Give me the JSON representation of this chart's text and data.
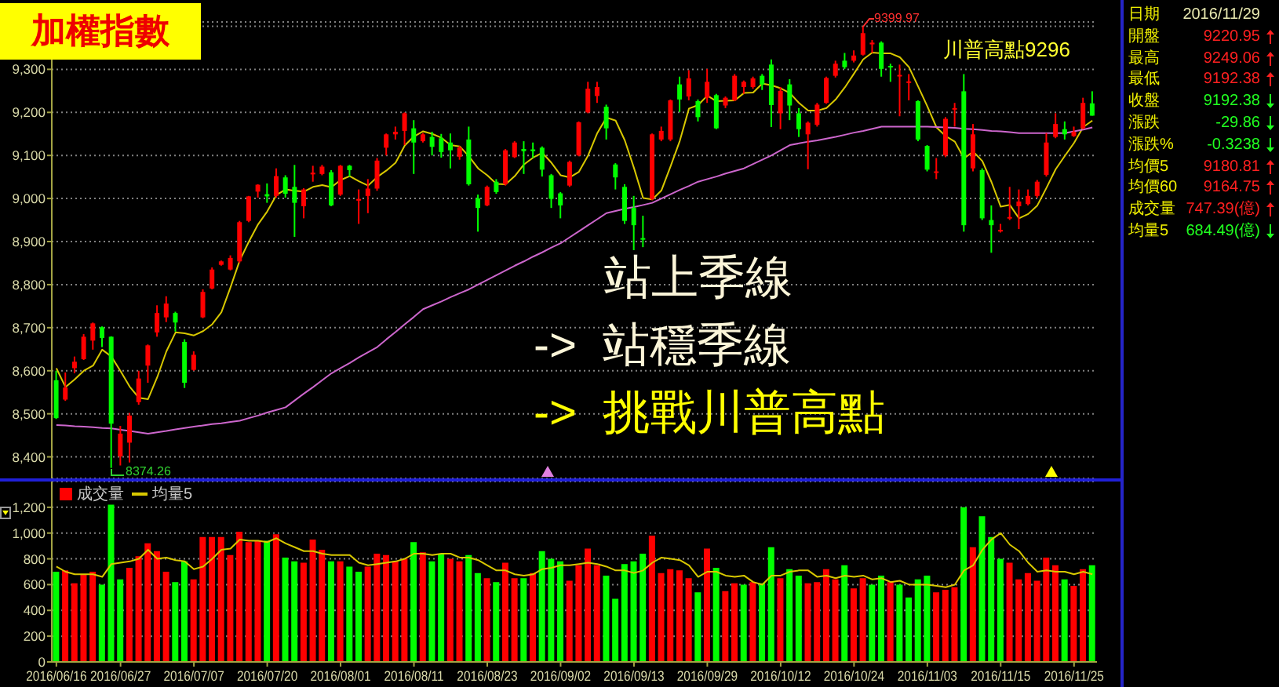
{
  "chart_data": [
    {
      "type": "candlestick",
      "title": "加權指數",
      "categories": [
        "2016/06/16",
        null,
        null,
        null,
        null,
        null,
        null,
        "2016/06/27",
        null,
        null,
        null,
        null,
        null,
        null,
        null,
        "2016/07/07",
        null,
        null,
        null,
        null,
        null,
        null,
        null,
        "2016/07/20",
        null,
        null,
        null,
        null,
        null,
        null,
        null,
        "2016/08/01",
        null,
        null,
        null,
        null,
        null,
        null,
        null,
        "2016/08/11",
        null,
        null,
        null,
        null,
        null,
        null,
        null,
        "2016/08/23",
        null,
        null,
        null,
        null,
        null,
        null,
        null,
        "2016/09/02",
        null,
        null,
        null,
        null,
        null,
        null,
        null,
        "2016/09/13",
        null,
        null,
        null,
        null,
        null,
        null,
        null,
        "2016/09/29",
        null,
        null,
        null,
        null,
        null,
        null,
        null,
        "2016/10/12",
        null,
        null,
        null,
        null,
        null,
        null,
        null,
        "2016/10/24",
        null,
        null,
        null,
        null,
        null,
        null,
        null,
        "2016/11/03",
        null,
        null,
        null,
        null,
        null,
        null,
        null,
        "2016/11/15",
        null,
        null,
        null,
        null,
        null,
        null,
        null,
        "2016/11/25",
        null,
        null
      ],
      "ohlc": [
        [
          8578,
          8600,
          8488,
          8490
        ],
        [
          8533,
          8596,
          8530,
          8561
        ],
        [
          8606,
          8633,
          8594,
          8621
        ],
        [
          8627,
          8685,
          8625,
          8679
        ],
        [
          8670,
          8712,
          8649,
          8710
        ],
        [
          8701,
          8703,
          8655,
          8676
        ],
        [
          8679,
          8680,
          8374.26,
          8477
        ],
        [
          8401,
          8472,
          8380,
          8454
        ],
        [
          8433,
          8502,
          8387,
          8496
        ],
        [
          8527,
          8600,
          8521,
          8582
        ],
        [
          8612,
          8661,
          8572,
          8659
        ],
        [
          8689,
          8752,
          8679,
          8734
        ],
        [
          8724,
          8773,
          8713,
          8756
        ],
        [
          8734,
          8737,
          8691,
          8712
        ],
        [
          8667,
          8673,
          8560,
          8572
        ],
        [
          8602,
          8645,
          8600,
          8637
        ],
        [
          8724,
          8789,
          8722,
          8783
        ],
        [
          8791,
          8840,
          8789,
          8835
        ],
        [
          8846,
          8856,
          8844,
          8854
        ],
        [
          8835,
          8868,
          8833,
          8862
        ],
        [
          8854,
          8948,
          8850,
          8945
        ],
        [
          8948,
          9006,
          8945,
          9005
        ],
        [
          9016,
          9033,
          9002,
          9032
        ],
        [
          9010,
          9035,
          8990,
          9005
        ],
        [
          9006,
          9070,
          9002,
          9052
        ],
        [
          9049,
          9054,
          9002,
          9011
        ],
        [
          9027,
          9078,
          8911,
          8990
        ],
        [
          8982,
          9024,
          8954,
          9021
        ],
        [
          9056,
          9076,
          9039,
          9060
        ],
        [
          9057,
          9078,
          9054,
          9074
        ],
        [
          9061,
          9066,
          8982,
          8984
        ],
        [
          9009,
          9078,
          9006,
          9076
        ],
        [
          9076,
          9078,
          9051,
          9066
        ],
        [
          8995,
          9021,
          8941,
          8999
        ],
        [
          9006,
          9045,
          8966,
          9023
        ],
        [
          9023,
          9094,
          9018,
          9088
        ],
        [
          9118,
          9151,
          9100,
          9149
        ],
        [
          9149,
          9167,
          9137,
          9155
        ],
        [
          9157,
          9200,
          9124,
          9198
        ],
        [
          9163,
          9182,
          9057,
          9130
        ],
        [
          9133,
          9152,
          9130,
          9149
        ],
        [
          9143,
          9155,
          9100,
          9120
        ],
        [
          9140,
          9150,
          9095,
          9108
        ],
        [
          9130,
          9151,
          9070,
          9112
        ],
        [
          9097,
          9122,
          9090,
          9118
        ],
        [
          9137,
          9167,
          9030,
          9033
        ],
        [
          9000,
          9009,
          8923,
          8978
        ],
        [
          8984,
          9030,
          8982,
          9027
        ],
        [
          9039,
          9045,
          9011,
          9015
        ],
        [
          9033,
          9115,
          9030,
          9112
        ],
        [
          9096,
          9133,
          9094,
          9130
        ],
        [
          9115,
          9133,
          9057,
          9110
        ],
        [
          9114,
          9130,
          9094,
          9110
        ],
        [
          9118,
          9121,
          9051,
          9067
        ],
        [
          9054,
          9057,
          8978,
          8999
        ],
        [
          9012,
          9015,
          8954,
          8984
        ],
        [
          9030,
          9088,
          9027,
          9085
        ],
        [
          9100,
          9179,
          9098,
          9177
        ],
        [
          9200,
          9271,
          9198,
          9255
        ],
        [
          9238,
          9271,
          9222,
          9259
        ],
        [
          9213,
          9218,
          9137,
          9163
        ],
        [
          9079,
          9082,
          9021,
          9049
        ],
        [
          9027,
          9033,
          8941,
          8948
        ],
        [
          8978,
          9006,
          8880,
          8938
        ],
        [
          8908,
          8960,
          8887,
          8905
        ],
        [
          8999,
          9151,
          8996,
          9149
        ],
        [
          9137,
          9167,
          9133,
          9157
        ],
        [
          9137,
          9230,
          9133,
          9228
        ],
        [
          9265,
          9283,
          9201,
          9230
        ],
        [
          9237,
          9298,
          9228,
          9279
        ],
        [
          9226,
          9230,
          9179,
          9189
        ],
        [
          9234,
          9301,
          9222,
          9271
        ],
        [
          9240,
          9243,
          9161,
          9163
        ],
        [
          9216,
          9237,
          9210,
          9234
        ],
        [
          9228,
          9289,
          9226,
          9285
        ],
        [
          9259,
          9274,
          9243,
          9271
        ],
        [
          9259,
          9283,
          9255,
          9279
        ],
        [
          9285,
          9289,
          9252,
          9265
        ],
        [
          9311,
          9323,
          9166,
          9217
        ],
        [
          9198,
          9259,
          9161,
          9250
        ],
        [
          9265,
          9277,
          9182,
          9216
        ],
        [
          9198,
          9210,
          9143,
          9161
        ],
        [
          9149,
          9179,
          9068,
          9176
        ],
        [
          9171,
          9222,
          9167,
          9218
        ],
        [
          9222,
          9283,
          9220,
          9280
        ],
        [
          9285,
          9320,
          9281,
          9313
        ],
        [
          9320,
          9338,
          9301,
          9305
        ],
        [
          9320,
          9344,
          9316,
          9332
        ],
        [
          9334,
          9399.97,
          9332,
          9384
        ],
        [
          9358,
          9368,
          9338,
          9362
        ],
        [
          9362,
          9365,
          9283,
          9301
        ],
        [
          9308,
          9313,
          9271,
          9305
        ],
        [
          9285,
          9311,
          9191,
          9287
        ],
        [
          9270,
          9289,
          9228,
          9272
        ],
        [
          9226,
          9228,
          9133,
          9137
        ],
        [
          9122,
          9124,
          9063,
          9067
        ],
        [
          9060,
          9094,
          9045,
          9063
        ],
        [
          9100,
          9189,
          9096,
          9185
        ],
        [
          9208,
          9222,
          9167,
          9210
        ],
        [
          9249,
          9289,
          8923,
          8938
        ],
        [
          9070,
          9173,
          9063,
          9149
        ],
        [
          9066,
          9070,
          8950,
          8954
        ],
        [
          8950,
          8984,
          8874,
          8938
        ],
        [
          8925,
          8941,
          8921,
          8927
        ],
        [
          8955,
          9027,
          8950,
          8957
        ],
        [
          8982,
          9021,
          8929,
          8993
        ],
        [
          8987,
          9021,
          8984,
          9006
        ],
        [
          9006,
          9043,
          9002,
          9039
        ],
        [
          9055,
          9152,
          9051,
          9130
        ],
        [
          9143,
          9198,
          9140,
          9173
        ],
        [
          9161,
          9179,
          9137,
          9149
        ],
        [
          9145,
          9167,
          9143,
          9155
        ],
        [
          9163,
          9234,
          9161,
          9222
        ],
        [
          9220.95,
          9249.06,
          9192.38,
          9192.38
        ]
      ],
      "colors": [
        "#00ff00",
        "#ff0000",
        "#ff0000",
        "#ff0000",
        "#ff0000",
        "#00ff00",
        "#00ff00",
        "#ff0000",
        "#ff0000",
        "#ff0000",
        "#ff0000",
        "#ff0000",
        "#ff0000",
        "#00ff00",
        "#00ff00",
        "#ff0000",
        "#ff0000",
        "#ff0000",
        "#ff0000",
        "#ff0000",
        "#ff0000",
        "#ff0000",
        "#ff0000",
        "#00ff00",
        "#ff0000",
        "#00ff00",
        "#00ff00",
        "#ff0000",
        "#ff0000",
        "#ff0000",
        "#00ff00",
        "#ff0000",
        "#00ff00",
        "#ff0000",
        "#ff0000",
        "#ff0000",
        "#ff0000",
        "#ff0000",
        "#ff0000",
        "#00ff00",
        "#ff0000",
        "#00ff00",
        "#00ff00",
        "#00ff00",
        "#ff0000",
        "#00ff00",
        "#00ff00",
        "#ff0000",
        "#00ff00",
        "#ff0000",
        "#ff0000",
        "#00ff00",
        "#00ff00",
        "#00ff00",
        "#00ff00",
        "#00ff00",
        "#ff0000",
        "#ff0000",
        "#ff0000",
        "#ff0000",
        "#00ff00",
        "#00ff00",
        "#00ff00",
        "#00ff00",
        "#00ff00",
        "#ff0000",
        "#ff0000",
        "#ff0000",
        "#00ff00",
        "#ff0000",
        "#00ff00",
        "#ff0000",
        "#00ff00",
        "#ff0000",
        "#ff0000",
        "#ff0000",
        "#ff0000",
        "#00ff00",
        "#00ff00",
        "#ff0000",
        "#00ff00",
        "#00ff00",
        "#ff0000",
        "#ff0000",
        "#ff0000",
        "#ff0000",
        "#00ff00",
        "#ff0000",
        "#ff0000",
        "#ff0000",
        "#00ff00",
        "#00ff00",
        "#ff0000",
        "#ff0000",
        "#00ff00",
        "#00ff00",
        "#ff0000",
        "#ff0000",
        "#ff0000",
        "#00ff00",
        "#ff0000",
        "#00ff00",
        "#00ff00",
        "#ff0000",
        "#ff0000",
        "#ff0000",
        "#ff0000",
        "#ff0000",
        "#ff0000",
        "#ff0000",
        "#00ff00",
        "#ff0000",
        "#ff0000",
        "#00ff00"
      ],
      "series": [
        {
          "type": "line",
          "color": "#d8c800",
          "values": [
            8606,
            8562,
            8580,
            8600,
            8612,
            8649,
            8633,
            8599,
            8563,
            8537,
            8534,
            8585,
            8645,
            8689,
            8687,
            8682,
            8692,
            8708,
            8736,
            8794,
            8856,
            8900,
            8940,
            8970,
            9008,
            9021,
            9018,
            9016,
            9027,
            9031,
            9026,
            9043,
            9052,
            9040,
            9030,
            9050,
            9065,
            9083,
            9123,
            9144,
            9156,
            9150,
            9141,
            9124,
            9121,
            9098,
            9070,
            9054,
            9034,
            9033,
            9052,
            9079,
            9095,
            9106,
            9083,
            9054,
            9049,
            9062,
            9100,
            9152,
            9188,
            9181,
            9135,
            9071,
            9001,
            8998,
            9019,
            9075,
            9134,
            9209,
            9217,
            9239,
            9226,
            9227,
            9228,
            9245,
            9246,
            9267,
            9263,
            9256,
            9245,
            9222,
            9204,
            9204,
            9210,
            9230,
            9258,
            9290,
            9323,
            9339,
            9337,
            9337,
            9328,
            9305,
            9260,
            9214,
            9165,
            9145,
            9132,
            9093,
            9109,
            9087,
            9038,
            8981,
            8985,
            8954,
            8964,
            8984,
            9025,
            9068,
            9099,
            9129,
            9166,
            9181
          ]
        },
        {
          "type": "line",
          "color": "#cc66cc",
          "values": [
            8474,
            8473,
            8471,
            8470,
            8469,
            8467,
            8466,
            8463,
            8460,
            8457,
            8454,
            8457,
            8460,
            8464,
            8467,
            8470,
            8473,
            8476,
            8478,
            8481,
            8484,
            8490,
            8496,
            8503,
            8509,
            8515,
            8531,
            8547,
            8562,
            8578,
            8594,
            8606,
            8618,
            8631,
            8643,
            8655,
            8673,
            8690,
            8708,
            8725,
            8743,
            8752,
            8761,
            8771,
            8780,
            8789,
            8800,
            8811,
            8822,
            8833,
            8844,
            8854,
            8865,
            8875,
            8886,
            8896,
            8910,
            8924,
            8938,
            8952,
            8966,
            8971,
            8976,
            8980,
            8985,
            8990,
            9000,
            9010,
            9020,
            9029,
            9039,
            9045,
            9051,
            9058,
            9064,
            9070,
            9080,
            9090,
            9100,
            9112,
            9124,
            9128,
            9132,
            9135,
            9139,
            9143,
            9148,
            9153,
            9157,
            9162,
            9167,
            9167,
            9167,
            9167,
            9167,
            9167,
            9166,
            9165,
            9164,
            9162,
            9161,
            9159,
            9157,
            9156,
            9154,
            9152,
            9152,
            9152,
            9152,
            9152,
            9152,
            9156,
            9160,
            9165
          ]
        }
      ],
      "ylim": [
        8350,
        9410
      ],
      "yticks": [
        {
          "value": 8400,
          "label": "8,400"
        },
        {
          "value": 8500,
          "label": "8,500"
        },
        {
          "value": 8600,
          "label": "8,600"
        },
        {
          "value": 8700,
          "label": "8,700"
        },
        {
          "value": 8800,
          "label": "8,800"
        },
        {
          "value": 8900,
          "label": "8,900"
        },
        {
          "value": 9000,
          "label": "9,000"
        },
        {
          "value": 9100,
          "label": "9,100"
        },
        {
          "value": 9200,
          "label": "9,200"
        },
        {
          "value": 9300,
          "label": "9,300"
        },
        {
          "value": 9400,
          "label": null
        }
      ],
      "grid": "y",
      "tick_labels": "y",
      "annotations": [
        "川普高點9296",
        "站上季線",
        "-> 站穩季線",
        "-> 挑戰川普高點",
        "8374.26",
        "9399.97"
      ]
    },
    {
      "type": "bar",
      "categories": [
        "2016/06/16",
        null,
        null,
        null,
        null,
        null,
        null,
        "2016/06/27",
        null,
        null,
        null,
        null,
        null,
        null,
        null,
        "2016/07/07",
        null,
        null,
        null,
        null,
        null,
        null,
        null,
        "2016/07/20",
        null,
        null,
        null,
        null,
        null,
        null,
        null,
        "2016/08/01",
        null,
        null,
        null,
        null,
        null,
        null,
        null,
        "2016/08/11",
        null,
        null,
        null,
        null,
        null,
        null,
        null,
        "2016/08/23",
        null,
        null,
        null,
        null,
        null,
        null,
        null,
        "2016/09/02",
        null,
        null,
        null,
        null,
        null,
        null,
        null,
        "2016/09/13",
        null,
        null,
        null,
        null,
        null,
        null,
        null,
        "2016/09/29",
        null,
        null,
        null,
        null,
        null,
        null,
        null,
        "2016/10/12",
        null,
        null,
        null,
        null,
        null,
        null,
        null,
        "2016/10/24",
        null,
        null,
        null,
        null,
        null,
        null,
        null,
        "2016/11/03",
        null,
        null,
        null,
        null,
        null,
        null,
        null,
        "2016/11/15",
        null,
        null,
        null,
        null,
        null,
        null,
        null,
        "2016/11/25",
        null,
        null
      ],
      "series": [
        {
          "name": "成交量",
          "color": "#ff0000",
          "colors": [
            "#00ff00",
            "#ff0000",
            "#ff0000",
            "#ff0000",
            "#ff0000",
            "#00ff00",
            "#00ff00",
            "#00ff00",
            "#ff0000",
            "#ff0000",
            "#ff0000",
            "#ff0000",
            "#ff0000",
            "#00ff00",
            "#00ff00",
            "#ff0000",
            "#ff0000",
            "#ff0000",
            "#ff0000",
            "#ff0000",
            "#ff0000",
            "#ff0000",
            "#ff0000",
            "#00ff00",
            "#ff0000",
            "#00ff00",
            "#00ff00",
            "#ff0000",
            "#ff0000",
            "#ff0000",
            "#00ff00",
            "#ff0000",
            "#00ff00",
            "#00ff00",
            "#ff0000",
            "#ff0000",
            "#ff0000",
            "#ff0000",
            "#ff0000",
            "#00ff00",
            "#ff0000",
            "#00ff00",
            "#00ff00",
            "#ff0000",
            "#ff0000",
            "#00ff00",
            "#00ff00",
            "#ff0000",
            "#00ff00",
            "#ff0000",
            "#ff0000",
            "#00ff00",
            "#ff0000",
            "#00ff00",
            "#00ff00",
            "#00ff00",
            "#ff0000",
            "#ff0000",
            "#ff0000",
            "#ff0000",
            "#00ff00",
            "#00ff00",
            "#00ff00",
            "#00ff00",
            "#00ff00",
            "#ff0000",
            "#ff0000",
            "#ff0000",
            "#ff0000",
            "#ff0000",
            "#00ff00",
            "#ff0000",
            "#00ff00",
            "#ff0000",
            "#ff0000",
            "#00ff00",
            "#ff0000",
            "#00ff00",
            "#00ff00",
            "#ff0000",
            "#00ff00",
            "#00ff00",
            "#ff0000",
            "#ff0000",
            "#ff0000",
            "#ff0000",
            "#00ff00",
            "#ff0000",
            "#ff0000",
            "#00ff00",
            "#00ff00",
            "#ff0000",
            "#00ff00",
            "#00ff00",
            "#00ff00",
            "#00ff00",
            "#ff0000",
            "#ff0000",
            "#ff0000",
            "#00ff00",
            "#ff0000",
            "#00ff00",
            "#00ff00",
            "#00ff00",
            "#ff0000",
            "#ff0000",
            "#ff0000",
            "#ff0000",
            "#ff0000",
            "#ff0000",
            "#00ff00",
            "#ff0000",
            "#ff0000",
            "#00ff00"
          ],
          "values": [
            700,
            710,
            610,
            680,
            700,
            600,
            1220,
            640,
            730,
            820,
            920,
            860,
            700,
            620,
            780,
            640,
            970,
            970,
            970,
            830,
            1010,
            930,
            940,
            940,
            990,
            810,
            780,
            770,
            950,
            870,
            780,
            780,
            740,
            700,
            740,
            840,
            830,
            780,
            800,
            930,
            850,
            780,
            840,
            800,
            780,
            830,
            690,
            650,
            620,
            770,
            650,
            650,
            690,
            860,
            800,
            780,
            630,
            750,
            880,
            750,
            670,
            490,
            760,
            780,
            840,
            980,
            690,
            720,
            710,
            650,
            540,
            880,
            730,
            550,
            610,
            600,
            620,
            610,
            890,
            650,
            720,
            670,
            610,
            620,
            720,
            640,
            750,
            570,
            650,
            600,
            670,
            620,
            600,
            500,
            640,
            670,
            540,
            560,
            580,
            1200,
            890,
            1130,
            970,
            800,
            770,
            640,
            690,
            630,
            810,
            750,
            640,
            590,
            720,
            750
          ]
        },
        {
          "name": "均量5",
          "type": "line",
          "color": "#d8c800",
          "values": [
            740,
            700,
            680,
            680,
            680,
            660,
            760,
            770,
            780,
            800,
            870,
            800,
            810,
            790,
            780,
            720,
            740,
            800,
            870,
            880,
            950,
            940,
            940,
            930,
            960,
            920,
            890,
            860,
            860,
            840,
            830,
            830,
            830,
            770,
            750,
            760,
            770,
            780,
            800,
            840,
            840,
            830,
            840,
            840,
            810,
            810,
            790,
            750,
            710,
            710,
            680,
            670,
            680,
            720,
            730,
            750,
            750,
            760,
            770,
            760,
            740,
            710,
            710,
            690,
            710,
            770,
            810,
            800,
            790,
            750,
            660,
            700,
            700,
            670,
            660,
            670,
            620,
            600,
            670,
            670,
            700,
            710,
            710,
            660,
            670,
            650,
            670,
            660,
            670,
            640,
            650,
            620,
            630,
            600,
            600,
            600,
            590,
            580,
            600,
            710,
            750,
            870,
            950,
            1000,
            910,
            860,
            770,
            700,
            710,
            700,
            700,
            680,
            700,
            680
          ]
        }
      ],
      "ylim": [
        0,
        1400
      ],
      "yticks": [
        0,
        200,
        400,
        600,
        800,
        {
          "value": 1000,
          "label": "1,000"
        },
        {
          "value": 1200,
          "label": "1,200"
        }
      ],
      "grid": "y",
      "legend": "top left"
    },
    {
      "type": "other",
      "categories": [
        "日期",
        "開盤",
        "最高",
        "最低",
        "收盤",
        "漲跌",
        "漲跌%",
        "均價5",
        "均價60",
        "成交量",
        "均量5"
      ],
      "value_labels": [
        "2016/11/29",
        "9220.95",
        "9249.06",
        "9192.38",
        "9192.38",
        "-29.86",
        "-0.3238",
        "9180.81",
        "9164.75",
        "747.39(億)",
        "684.49(億)"
      ],
      "colors": [
        "#e8e8b0",
        "#ff2020",
        "#ff2020",
        "#ff2020",
        "#20ff20",
        "#20ff20",
        "#20ff20",
        "#ff2020",
        "#ff2020",
        "#ff2020",
        "#20ff20"
      ]
    }
  ]
}
